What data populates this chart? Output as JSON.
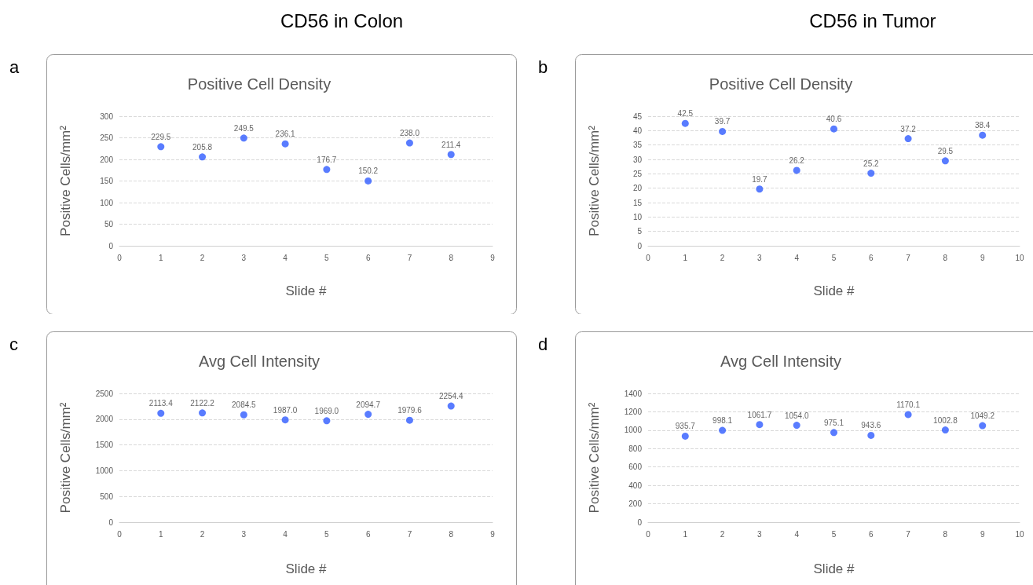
{
  "chart_data": [
    {
      "type": "scatter",
      "title": "Positive Cell Density",
      "xlabel": "Slide #",
      "ylabel": "Positive Cells/mm²",
      "annotations": [
        "a",
        "CD56 in Colon"
      ],
      "x": [
        1,
        2,
        3,
        4,
        5,
        6,
        7,
        8
      ],
      "values": [
        229.5,
        205.8,
        249.5,
        236.1,
        176.7,
        150.2,
        238.0,
        211.4
      ],
      "value_labels": [
        "229.5",
        "205.8",
        "249.5",
        "236.1",
        "176.7",
        "150.2",
        "238.0",
        "211.4"
      ],
      "color": "#2f5bff",
      "xlim": [
        0,
        9
      ],
      "xticks": [
        0,
        1,
        2,
        3,
        4,
        5,
        6,
        7,
        8,
        9
      ],
      "ylim": [
        0,
        300
      ],
      "yticks": [
        0,
        50,
        100,
        150,
        200,
        250,
        300
      ],
      "grid": "y",
      "marker": "circle"
    },
    {
      "type": "scatter",
      "title": "Positive Cell Density",
      "xlabel": "Slide #",
      "ylabel": "Positive Cells/mm²",
      "annotations": [
        "b",
        "CD56 in Tumor"
      ],
      "x": [
        1,
        2,
        3,
        4,
        5,
        6,
        7,
        8,
        9
      ],
      "values": [
        42.5,
        39.7,
        19.7,
        26.2,
        40.6,
        25.2,
        37.2,
        29.5,
        38.4
      ],
      "value_labels": [
        "42.5",
        "39.7",
        "19.7",
        "26.2",
        "40.6",
        "25.2",
        "37.2",
        "29.5",
        "38.4"
      ],
      "color": "#2f5bff",
      "xlim": [
        0,
        10
      ],
      "xticks": [
        0,
        1,
        2,
        3,
        4,
        5,
        6,
        7,
        8,
        9,
        10
      ],
      "ylim": [
        0,
        45
      ],
      "yticks": [
        0,
        5,
        10,
        15,
        20,
        25,
        30,
        35,
        40,
        45
      ],
      "grid": "y",
      "marker": "circle"
    },
    {
      "type": "scatter",
      "title": "Avg Cell Intensity",
      "xlabel": "Slide #",
      "ylabel": "Positive Cells/mm²",
      "annotations": [
        "c"
      ],
      "x": [
        1,
        2,
        3,
        4,
        5,
        6,
        7,
        8
      ],
      "values": [
        2113.4,
        2122.2,
        2084.5,
        1987.0,
        1969.0,
        2094.7,
        1979.6,
        2254.4
      ],
      "value_labels": [
        "2113.4",
        "2122.2",
        "2084.5",
        "1987.0",
        "1969.0",
        "2094.7",
        "1979.6",
        "2254.4"
      ],
      "color": "#2f5bff",
      "xlim": [
        0,
        9
      ],
      "xticks": [
        0,
        1,
        2,
        3,
        4,
        5,
        6,
        7,
        8,
        9
      ],
      "ylim": [
        0,
        2500
      ],
      "yticks": [
        0,
        500,
        1000,
        1500,
        2000,
        2500
      ],
      "grid": "y",
      "marker": "circle"
    },
    {
      "type": "scatter",
      "title": "Avg Cell Intensity",
      "xlabel": "Slide #",
      "ylabel": "Positive Cells/mm²",
      "annotations": [
        "d"
      ],
      "x": [
        1,
        2,
        3,
        4,
        5,
        6,
        7,
        8,
        9
      ],
      "values": [
        935.7,
        998.1,
        1061.7,
        1054.0,
        975.1,
        943.6,
        1170.1,
        1002.8,
        1049.2
      ],
      "value_labels": [
        "935.7",
        "998.1",
        "1061.7",
        "1054.0",
        "975.1",
        "943.6",
        "1170.1",
        "1002.8",
        "1049.2"
      ],
      "color": "#2f5bff",
      "xlim": [
        0,
        10
      ],
      "xticks": [
        0,
        1,
        2,
        3,
        4,
        5,
        6,
        7,
        8,
        9,
        10
      ],
      "ylim": [
        0,
        1400
      ],
      "yticks": [
        0,
        200,
        400,
        600,
        800,
        1000,
        1200,
        1400
      ],
      "grid": "y",
      "marker": "circle"
    }
  ]
}
